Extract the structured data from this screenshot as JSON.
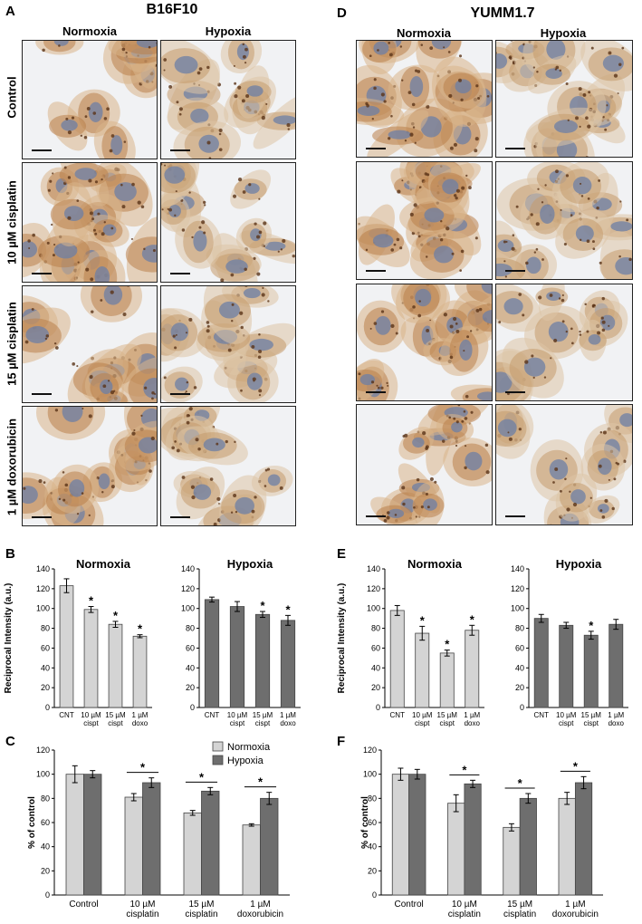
{
  "panels": {
    "A": "A",
    "B": "B",
    "C": "C",
    "D": "D",
    "E": "E",
    "F": "F"
  },
  "left_title": "B16F10",
  "right_title": "YUMM1.7",
  "col_normoxia": "Normoxia",
  "col_hypoxia": "Hypoxia",
  "row_labels": [
    "Control",
    "10 µM cisplatin",
    "15 µM cisplatin",
    "1 µM doxorubicin"
  ],
  "chart_data": [
    {
      "id": "B-normoxia",
      "type": "bar",
      "title": "Normoxia",
      "ylabel": "Reciprocal Intensity (a.u.)",
      "ylim": [
        0,
        140
      ],
      "yticks": [
        0,
        20,
        40,
        60,
        80,
        100,
        120,
        140
      ],
      "categories": [
        "CNT",
        "10 µM cispt",
        "15 µM cispt",
        "1 µM doxo"
      ],
      "values": [
        123,
        99,
        84,
        72
      ],
      "errors": [
        7,
        3,
        3,
        1.5
      ],
      "significant": [
        false,
        true,
        true,
        true
      ],
      "color": "#d4d4d4"
    },
    {
      "id": "B-hypoxia",
      "type": "bar",
      "title": "Hypoxia",
      "ylabel": "",
      "ylim": [
        0,
        140
      ],
      "yticks": [
        0,
        20,
        40,
        60,
        80,
        100,
        120,
        140
      ],
      "categories": [
        "CNT",
        "10 µM cispt",
        "15 µM cispt",
        "1 µM doxo"
      ],
      "values": [
        109,
        102,
        94,
        88
      ],
      "errors": [
        2.5,
        5,
        3,
        5
      ],
      "significant": [
        false,
        false,
        true,
        true
      ],
      "color": "#6e6e6e"
    },
    {
      "id": "E-normoxia",
      "type": "bar",
      "title": "Normoxia",
      "ylabel": "Reciprocal Intensity (a.u.)",
      "ylim": [
        0,
        140
      ],
      "yticks": [
        0,
        20,
        40,
        60,
        80,
        100,
        120,
        140
      ],
      "categories": [
        "CNT",
        "10 µM cispt",
        "15 µM cispt",
        "1 µM doxo"
      ],
      "values": [
        98,
        75,
        55,
        78
      ],
      "errors": [
        5,
        7,
        3,
        5
      ],
      "significant": [
        false,
        true,
        true,
        true
      ],
      "color": "#d4d4d4"
    },
    {
      "id": "E-hypoxia",
      "type": "bar",
      "title": "Hypoxia",
      "ylabel": "",
      "ylim": [
        0,
        140
      ],
      "yticks": [
        0,
        20,
        40,
        60,
        80,
        100,
        120,
        140
      ],
      "categories": [
        "CNT",
        "10 µM cispt",
        "15 µM cispt",
        "1 µM doxo"
      ],
      "values": [
        90,
        83,
        73,
        84
      ],
      "errors": [
        4,
        3,
        4,
        5
      ],
      "significant": [
        false,
        false,
        true,
        false
      ],
      "color": "#6e6e6e"
    },
    {
      "id": "C",
      "type": "bar",
      "title": "",
      "ylabel": "% of control",
      "ylim": [
        0,
        120
      ],
      "yticks": [
        0,
        20,
        40,
        60,
        80,
        100,
        120
      ],
      "categories": [
        "Control",
        "10 µM cisplatin",
        "15 µM cisplatin",
        "1 µM doxorubicin"
      ],
      "series": [
        {
          "name": "Normoxia",
          "values": [
            100,
            81,
            68,
            58
          ],
          "errors": [
            7,
            3,
            2,
            1
          ],
          "color": "#d4d4d4"
        },
        {
          "name": "Hypoxia",
          "values": [
            100,
            93,
            86,
            80
          ],
          "errors": [
            3,
            4,
            3,
            5
          ],
          "color": "#6e6e6e"
        }
      ],
      "significant_pairs": [
        false,
        true,
        true,
        true
      ],
      "legend": "top-right"
    },
    {
      "id": "F",
      "type": "bar",
      "title": "",
      "ylabel": "% of control",
      "ylim": [
        0,
        120
      ],
      "yticks": [
        0,
        20,
        40,
        60,
        80,
        100,
        120
      ],
      "categories": [
        "Control",
        "10 µM cisplatin",
        "15 µM cisplatin",
        "1 µM doxorubicin"
      ],
      "series": [
        {
          "name": "Normoxia",
          "values": [
            100,
            76,
            56,
            80
          ],
          "errors": [
            5,
            7,
            3,
            5
          ],
          "color": "#d4d4d4"
        },
        {
          "name": "Hypoxia",
          "values": [
            100,
            92,
            80,
            93
          ],
          "errors": [
            4,
            3,
            4,
            5
          ],
          "color": "#6e6e6e"
        }
      ],
      "significant_pairs": [
        false,
        true,
        true,
        true
      ],
      "legend": "none"
    }
  ],
  "asterisk": "*"
}
